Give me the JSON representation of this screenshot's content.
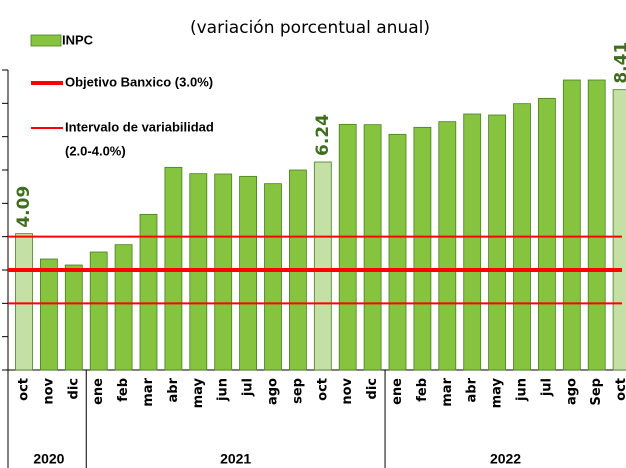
{
  "chart_data": {
    "type": "bar",
    "subtitle": "(variación porcentual anual)",
    "series_name": "INPC",
    "categories": [
      "oct",
      "nov",
      "dic",
      "ene",
      "feb",
      "mar",
      "abr",
      "may",
      "jun",
      "jul",
      "ago",
      "sep",
      "oct",
      "nov",
      "dic",
      "ene",
      "feb",
      "mar",
      "abr",
      "may",
      "jun",
      "jul",
      "ago",
      "Sep",
      "oct"
    ],
    "year": [
      "2020",
      "2020",
      "2020",
      "2021",
      "2021",
      "2021",
      "2021",
      "2021",
      "2021",
      "2021",
      "2021",
      "2021",
      "2021",
      "2021",
      "2021",
      "2022",
      "2022",
      "2022",
      "2022",
      "2022",
      "2022",
      "2022",
      "2022",
      "2022",
      "2022"
    ],
    "values": [
      4.09,
      3.33,
      3.15,
      3.54,
      3.76,
      4.67,
      6.08,
      5.89,
      5.88,
      5.81,
      5.59,
      6.0,
      6.24,
      7.37,
      7.36,
      7.07,
      7.28,
      7.45,
      7.68,
      7.65,
      7.99,
      8.15,
      8.7,
      8.7,
      8.41
    ],
    "value_labels": [
      "4.09",
      null,
      null,
      null,
      null,
      null,
      null,
      null,
      null,
      null,
      null,
      null,
      "6.24",
      null,
      null,
      null,
      null,
      null,
      null,
      null,
      null,
      null,
      null,
      null,
      "8.41"
    ],
    "colors": [
      "#c5e0a5",
      "#86c440",
      "#86c440",
      "#86c440",
      "#86c440",
      "#86c440",
      "#86c440",
      "#86c440",
      "#86c440",
      "#86c440",
      "#86c440",
      "#86c440",
      "#c5e0a5",
      "#86c440",
      "#86c440",
      "#86c440",
      "#86c440",
      "#86c440",
      "#86c440",
      "#86c440",
      "#86c440",
      "#86c440",
      "#86c440",
      "#86c440",
      "#c5e0a5"
    ],
    "reference_lines": [
      {
        "name": [
          "Objetivo Banxico (3.0%)"
        ],
        "values": [
          3
        ],
        "color": "#ff0000"
      },
      {
        "name": [
          "Intervalo de variabilidad",
          "(2.0-4.0%)"
        ],
        "values": [
          2,
          4
        ],
        "color": "#ff0000"
      }
    ],
    "ylim": [
      0,
      9
    ],
    "yticks": [
      0,
      1,
      2,
      3,
      4,
      5,
      6,
      7,
      8,
      9
    ]
  }
}
